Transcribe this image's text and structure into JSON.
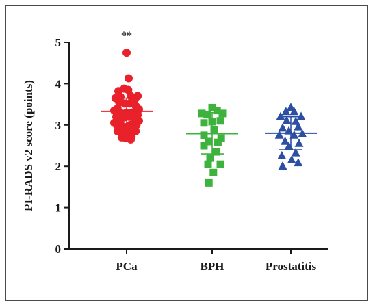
{
  "chart_data": {
    "type": "scatter",
    "ylabel": "PI-RADS v2 score (points)",
    "ylim": [
      0,
      5
    ],
    "yticks": [
      "0",
      "1",
      "2",
      "3",
      "4",
      "5"
    ],
    "categories": [
      "PCa",
      "BPH",
      "Prostatitis"
    ],
    "annotation": {
      "text": "**",
      "category": "PCa"
    },
    "grid": false,
    "series": [
      {
        "category": "PCa",
        "marker": "circle",
        "color": "#e8212b",
        "mean": 3.33,
        "sd_low": 3.02,
        "sd_high": 3.65,
        "points": [
          [
            0.0,
            4.75
          ],
          [
            0.05,
            4.13
          ],
          [
            0.07,
            3.52
          ],
          [
            -0.05,
            3.52
          ],
          [
            -0.22,
            3.4
          ],
          [
            0.23,
            3.45
          ],
          [
            -0.25,
            3.2
          ],
          [
            0.27,
            3.25
          ],
          [
            -0.12,
            3.28
          ],
          [
            0.12,
            3.3
          ],
          [
            -0.3,
            3.05
          ],
          [
            0.3,
            3.1
          ],
          [
            0.0,
            2.95
          ],
          [
            0.15,
            3.0
          ],
          [
            -0.15,
            3.02
          ],
          [
            -0.22,
            2.85
          ],
          [
            0.22,
            2.85
          ],
          [
            -0.06,
            2.8
          ],
          [
            0.06,
            2.82
          ],
          [
            -0.12,
            2.7
          ],
          [
            0.12,
            2.72
          ],
          [
            -0.02,
            2.68
          ],
          [
            0.1,
            2.65
          ],
          [
            -0.27,
            3.65
          ],
          [
            0.27,
            3.7
          ],
          [
            0.1,
            3.7
          ],
          [
            -0.15,
            3.68
          ],
          [
            -0.06,
            3.88
          ],
          [
            0.04,
            3.85
          ],
          [
            -0.2,
            3.82
          ],
          [
            0.2,
            3.62
          ],
          [
            0.18,
            3.55
          ],
          [
            -0.18,
            3.55
          ],
          [
            -0.3,
            3.35
          ],
          [
            0.3,
            3.38
          ],
          [
            0.0,
            3.3
          ],
          [
            0.06,
            3.2
          ],
          [
            -0.07,
            3.18
          ],
          [
            0.18,
            3.15
          ],
          [
            -0.18,
            3.12
          ],
          [
            0.24,
            3.0
          ],
          [
            -0.24,
            3.0
          ],
          [
            0.09,
            3.0
          ],
          [
            -0.09,
            2.95
          ]
        ]
      },
      {
        "category": "BPH",
        "marker": "square",
        "color": "#3db33d",
        "mean": 2.79,
        "sd_low": 2.3,
        "sd_high": 3.3,
        "points": [
          [
            0.0,
            3.42
          ],
          [
            0.12,
            3.35
          ],
          [
            -0.25,
            3.28
          ],
          [
            -0.12,
            3.25
          ],
          [
            0.25,
            3.28
          ],
          [
            -0.2,
            3.05
          ],
          [
            0.0,
            3.08
          ],
          [
            0.2,
            3.1
          ],
          [
            -0.2,
            2.75
          ],
          [
            0.05,
            2.88
          ],
          [
            0.22,
            2.68
          ],
          [
            -0.08,
            2.6
          ],
          [
            0.14,
            2.58
          ],
          [
            -0.2,
            2.5
          ],
          [
            0.1,
            2.35
          ],
          [
            -0.05,
            2.2
          ],
          [
            0.2,
            2.05
          ],
          [
            -0.1,
            2.05
          ],
          [
            0.03,
            1.85
          ],
          [
            -0.08,
            1.6
          ]
        ]
      },
      {
        "category": "Prostatitis",
        "marker": "triangle",
        "color": "#2d4fa3",
        "mean": 2.8,
        "sd_low": 2.4,
        "sd_high": 3.2,
        "points": [
          [
            0.0,
            3.42
          ],
          [
            -0.12,
            3.32
          ],
          [
            0.08,
            3.32
          ],
          [
            -0.25,
            3.2
          ],
          [
            0.25,
            3.2
          ],
          [
            -0.1,
            3.1
          ],
          [
            0.12,
            3.08
          ],
          [
            -0.2,
            2.92
          ],
          [
            0.18,
            2.95
          ],
          [
            -0.05,
            2.85
          ],
          [
            0.28,
            2.78
          ],
          [
            -0.28,
            2.75
          ],
          [
            0.08,
            2.75
          ],
          [
            -0.14,
            2.6
          ],
          [
            0.2,
            2.55
          ],
          [
            -0.05,
            2.48
          ],
          [
            0.12,
            2.32
          ],
          [
            -0.22,
            2.25
          ],
          [
            0.02,
            2.15
          ],
          [
            0.18,
            2.08
          ],
          [
            -0.2,
            2.0
          ]
        ]
      }
    ]
  }
}
